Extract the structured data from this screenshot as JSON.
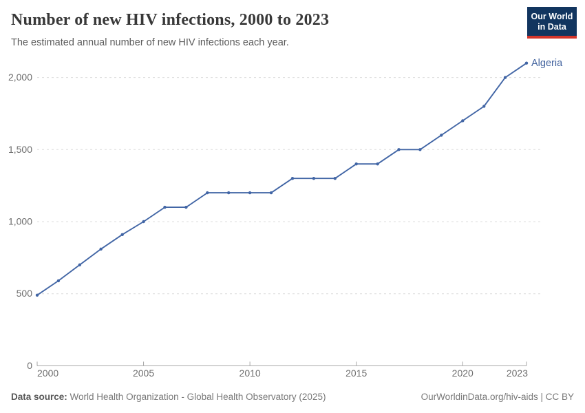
{
  "header": {
    "title": "Number of new HIV infections, 2000 to 2023",
    "subtitle": "The estimated annual number of new HIV infections each year.",
    "logo": {
      "line1": "Our World",
      "line2": "in Data",
      "bg_color": "#12355f",
      "stripe_color": "#d4352a"
    }
  },
  "chart_data": {
    "type": "line",
    "title": "Number of new HIV infections, 2000 to 2023",
    "entity": "Algeria",
    "x": [
      2000,
      2001,
      2002,
      2003,
      2004,
      2005,
      2006,
      2007,
      2008,
      2009,
      2010,
      2011,
      2012,
      2013,
      2014,
      2015,
      2016,
      2017,
      2018,
      2019,
      2020,
      2021,
      2022,
      2023
    ],
    "values": [
      490,
      590,
      700,
      810,
      910,
      1000,
      1100,
      1100,
      1200,
      1200,
      1200,
      1200,
      1300,
      1300,
      1300,
      1400,
      1400,
      1500,
      1500,
      1600,
      1700,
      1800,
      2000,
      2100
    ],
    "xlim": [
      2000,
      2023
    ],
    "ylim": [
      0,
      2100
    ],
    "x_ticks": [
      2000,
      2005,
      2010,
      2015,
      2020,
      2023
    ],
    "x_tick_labels": [
      "2000",
      "2005",
      "2010",
      "2015",
      "2020",
      "2023"
    ],
    "y_ticks": [
      0,
      500,
      1000,
      1500,
      2000
    ],
    "y_tick_labels": [
      "0",
      "500",
      "1,000",
      "1,500",
      "2,000"
    ],
    "grid": "horizontal-dashed",
    "legend_position": "end-of-line-label",
    "line_color": "#4165a5",
    "point_color": "#4165a5",
    "entity_label_color": "#41629e",
    "grid_color": "#dcdcdc",
    "axis_color": "#a6a6a6"
  },
  "footer": {
    "source_label": "Data source:",
    "source_text": " World Health Organization - Global Health Observatory (2025)",
    "link_text": "OurWorldinData.org/hiv-aids | CC BY"
  }
}
